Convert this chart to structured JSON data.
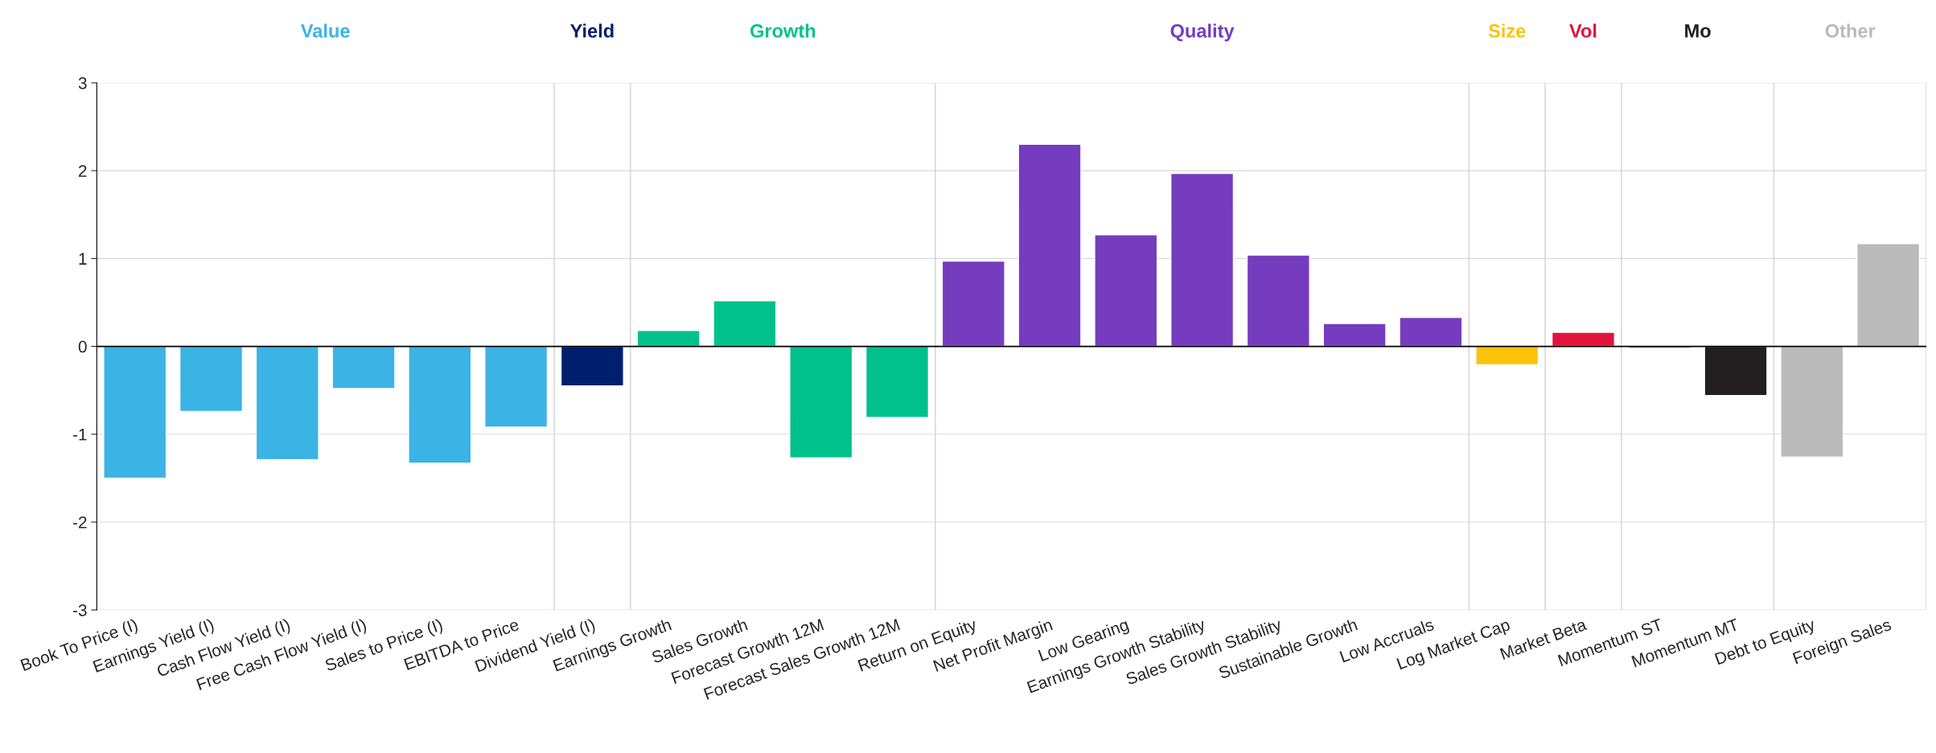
{
  "chart_data": {
    "type": "bar",
    "categories": [
      "Book To Price (I)",
      "Earnings Yield (I)",
      "Cash Flow Yield (I)",
      "Free Cash Flow Yield (I)",
      "Sales to Price (I)",
      "EBITDA to Price",
      "Dividend Yield (I)",
      "Earnings Growth",
      "Sales Growth",
      "Forecast Growth 12M",
      "Forecast Sales Growth 12M",
      "Return on Equity",
      "Net Profit Margin",
      "Low Gearing",
      "Earnings Growth Stability",
      "Sales Growth Stability",
      "Sustainable Growth",
      "Low Accruals",
      "Log Market Cap",
      "Market Beta",
      "Momentum ST",
      "Momentum MT",
      "Debt to Equity",
      "Foreign Sales"
    ],
    "values": [
      -1.5,
      -0.74,
      -1.29,
      -0.48,
      -1.33,
      -0.92,
      -0.45,
      0.18,
      0.52,
      -1.27,
      -0.81,
      0.97,
      2.3,
      1.27,
      1.97,
      1.04,
      0.26,
      0.33,
      -0.21,
      0.16,
      -0.02,
      -0.56,
      -1.26,
      1.17
    ],
    "colors": [
      "#3bb3e4",
      "#3bb3e4",
      "#3bb3e4",
      "#3bb3e4",
      "#3bb3e4",
      "#3bb3e4",
      "#001f6e",
      "#00c18c",
      "#00c18c",
      "#00c18c",
      "#00c18c",
      "#763cbf",
      "#763cbf",
      "#763cbf",
      "#763cbf",
      "#763cbf",
      "#763cbf",
      "#763cbf",
      "#fcc30b",
      "#e0143c",
      "#231f20",
      "#231f20",
      "#bababa",
      "#bababa"
    ],
    "ylim": [
      -3,
      3
    ],
    "yticks": [
      -3,
      -2,
      -1,
      0,
      1,
      2,
      3
    ],
    "grid": "y",
    "annotations": [
      "Value",
      "Yield",
      "Growth",
      "Quality",
      "Size",
      "Vol",
      "Mo",
      "Other"
    ],
    "ref_lines": [
      {
        "axis": "y",
        "value": 0,
        "color": "#000000"
      }
    ]
  }
}
